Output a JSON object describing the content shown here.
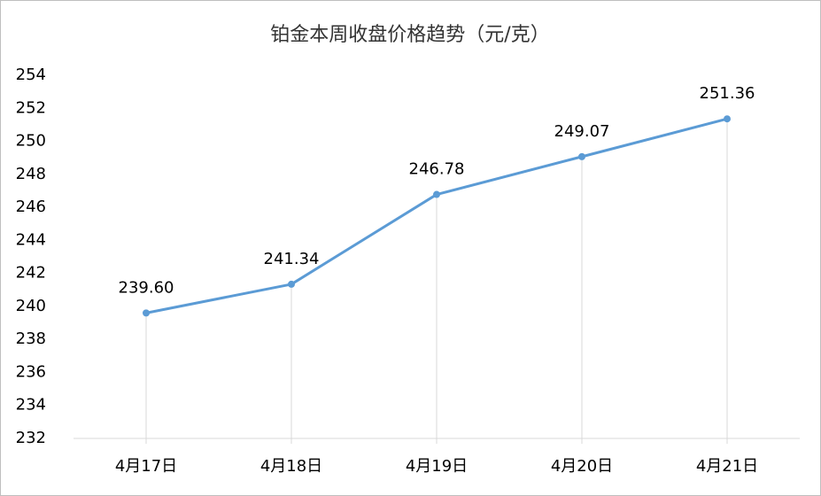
{
  "chart_data": {
    "type": "line",
    "title": "铂金本周收盘价格趋势（元/克）",
    "categories": [
      "4月17日",
      "4月18日",
      "4月19日",
      "4月20日",
      "4月21日"
    ],
    "values": [
      239.6,
      241.34,
      246.78,
      249.07,
      251.36
    ],
    "value_labels": [
      "239.60",
      "241.34",
      "246.78",
      "249.07",
      "251.36"
    ],
    "color": "#5b9bd5",
    "ylim": [
      232,
      254
    ],
    "yticks": [
      232,
      234,
      236,
      238,
      240,
      242,
      244,
      246,
      248,
      250,
      252,
      254
    ],
    "drop_lines": true
  }
}
